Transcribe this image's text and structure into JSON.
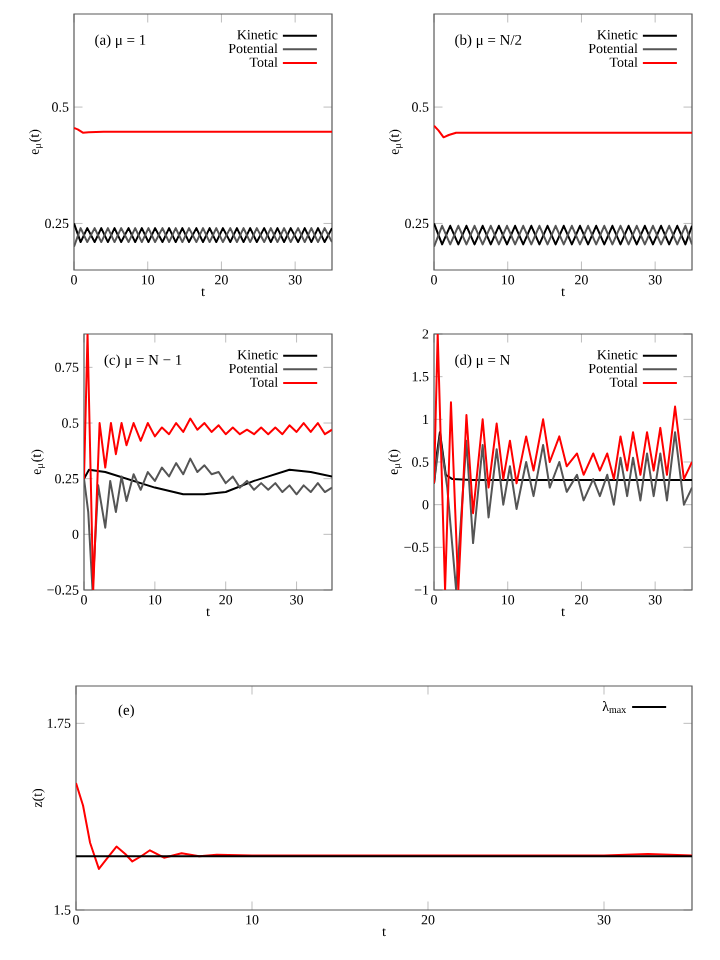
{
  "chart_data": [
    {
      "type": "line",
      "title": "(a) μ = 1",
      "xlabel": "t",
      "ylabel": "e$_{μ}$(t)",
      "xlim": [
        0,
        35
      ],
      "ylim": [
        0.15,
        0.7
      ],
      "xticks": [
        0,
        10,
        20,
        30
      ],
      "yticks": [
        0.25,
        0.5
      ],
      "legend": "top right",
      "series": [
        {
          "name": "Kinetic",
          "color": "#000000",
          "x": [
            0,
            0.9,
            1.8,
            2.8,
            3.7,
            4.6,
            5.5,
            6.4,
            7.4,
            8.3,
            9.2,
            10.1,
            11,
            12,
            12.9,
            13.8,
            14.7,
            15.6,
            16.6,
            17.5,
            18.4,
            19.3,
            20.2,
            21.2,
            22.1,
            23,
            23.9,
            24.8,
            25.8,
            26.7,
            27.6,
            28.5,
            29.4,
            30.4,
            31.3,
            32.2,
            33.1,
            34,
            35
          ],
          "values": [
            0.25,
            0.21,
            0.24,
            0.21,
            0.24,
            0.21,
            0.24,
            0.21,
            0.24,
            0.21,
            0.24,
            0.21,
            0.24,
            0.21,
            0.24,
            0.21,
            0.24,
            0.21,
            0.24,
            0.21,
            0.24,
            0.21,
            0.24,
            0.21,
            0.24,
            0.21,
            0.24,
            0.21,
            0.24,
            0.21,
            0.24,
            0.21,
            0.24,
            0.21,
            0.24,
            0.21,
            0.24,
            0.21,
            0.24
          ]
        },
        {
          "name": "Potential",
          "color": "#555555",
          "x": [
            0,
            0.9,
            1.8,
            2.8,
            3.7,
            4.6,
            5.5,
            6.4,
            7.4,
            8.3,
            9.2,
            10.1,
            11,
            12,
            12.9,
            13.8,
            14.7,
            15.6,
            16.6,
            17.5,
            18.4,
            19.3,
            20.2,
            21.2,
            22.1,
            23,
            23.9,
            24.8,
            25.8,
            26.7,
            27.6,
            28.5,
            29.4,
            30.4,
            31.3,
            32.2,
            33.1,
            34,
            35
          ],
          "values": [
            0.2,
            0.24,
            0.21,
            0.24,
            0.21,
            0.24,
            0.21,
            0.24,
            0.21,
            0.24,
            0.21,
            0.24,
            0.21,
            0.24,
            0.21,
            0.24,
            0.21,
            0.24,
            0.21,
            0.24,
            0.21,
            0.24,
            0.21,
            0.24,
            0.21,
            0.24,
            0.21,
            0.24,
            0.21,
            0.24,
            0.21,
            0.24,
            0.21,
            0.24,
            0.21,
            0.24,
            0.21,
            0.24,
            0.21
          ]
        },
        {
          "name": "Total",
          "color": "#ff0000",
          "x": [
            0,
            0.5,
            1.2,
            2,
            4,
            35
          ],
          "values": [
            0.455,
            0.452,
            0.445,
            0.446,
            0.447,
            0.447
          ]
        }
      ]
    },
    {
      "type": "line",
      "title": "(b) μ = N/2",
      "xlabel": "t",
      "ylabel": "e$_{μ}$(t)",
      "xlim": [
        0,
        35
      ],
      "ylim": [
        0.15,
        0.7
      ],
      "xticks": [
        0,
        10,
        20,
        30
      ],
      "yticks": [
        0.25,
        0.5
      ],
      "legend": "top right",
      "series": [
        {
          "name": "Kinetic",
          "color": "#000000",
          "x": [
            0,
            1.1,
            2.2,
            3.3,
            4.4,
            5.5,
            6.6,
            7.7,
            8.8,
            9.9,
            11,
            12.1,
            13.2,
            14.3,
            15.4,
            16.5,
            17.6,
            18.7,
            19.8,
            20.9,
            22,
            23.1,
            24.2,
            25.3,
            26.4,
            27.5,
            28.6,
            29.7,
            30.8,
            31.9,
            33,
            34.1,
            35
          ],
          "values": [
            0.25,
            0.205,
            0.245,
            0.205,
            0.245,
            0.205,
            0.245,
            0.205,
            0.245,
            0.205,
            0.245,
            0.205,
            0.245,
            0.205,
            0.245,
            0.205,
            0.245,
            0.205,
            0.245,
            0.205,
            0.245,
            0.205,
            0.245,
            0.205,
            0.245,
            0.205,
            0.245,
            0.205,
            0.245,
            0.205,
            0.245,
            0.205,
            0.245
          ]
        },
        {
          "name": "Potential",
          "color": "#555555",
          "x": [
            0,
            1.1,
            2.2,
            3.3,
            4.4,
            5.5,
            6.6,
            7.7,
            8.8,
            9.9,
            11,
            12.1,
            13.2,
            14.3,
            15.4,
            16.5,
            17.6,
            18.7,
            19.8,
            20.9,
            22,
            23.1,
            24.2,
            25.3,
            26.4,
            27.5,
            28.6,
            29.7,
            30.8,
            31.9,
            33,
            34.1,
            35
          ],
          "values": [
            0.2,
            0.245,
            0.205,
            0.245,
            0.205,
            0.245,
            0.205,
            0.245,
            0.205,
            0.245,
            0.205,
            0.245,
            0.205,
            0.245,
            0.205,
            0.245,
            0.205,
            0.245,
            0.205,
            0.245,
            0.205,
            0.245,
            0.205,
            0.245,
            0.205,
            0.245,
            0.205,
            0.245,
            0.205,
            0.245,
            0.205,
            0.245,
            0.205
          ]
        },
        {
          "name": "Total",
          "color": "#ff0000",
          "x": [
            0,
            0.6,
            1.3,
            2,
            3,
            35
          ],
          "values": [
            0.46,
            0.45,
            0.435,
            0.44,
            0.445,
            0.445
          ]
        }
      ]
    },
    {
      "type": "line",
      "title": "(c) μ = N − 1",
      "xlabel": "t",
      "ylabel": "e$_{μ}$(t)",
      "xlim": [
        0,
        35
      ],
      "ylim": [
        -0.25,
        0.9
      ],
      "xticks": [
        0,
        10,
        20,
        30
      ],
      "yticks": [
        {
          "value": -0.25,
          "label": "−0.25"
        },
        0,
        0.25,
        0.5,
        0.75
      ],
      "legend": "top right",
      "series": [
        {
          "name": "Kinetic",
          "color": "#000000",
          "x": [
            0,
            0.7,
            3,
            6,
            10,
            14,
            17,
            20,
            24,
            29,
            32,
            35
          ],
          "values": [
            0.25,
            0.29,
            0.28,
            0.25,
            0.21,
            0.18,
            0.18,
            0.19,
            0.24,
            0.29,
            0.28,
            0.26
          ]
        },
        {
          "name": "Potential",
          "color": "#555555",
          "x": [
            0,
            0.6,
            1.2,
            2,
            3,
            3.7,
            4.5,
            5.3,
            6,
            7,
            8,
            9,
            10,
            11,
            12,
            13,
            14,
            15,
            16,
            17,
            18,
            19,
            20,
            21,
            22,
            23,
            24,
            25,
            26,
            27,
            28,
            29,
            30,
            31,
            32,
            33,
            34,
            35
          ],
          "values": [
            0.25,
            0.1,
            -0.25,
            0.22,
            0.03,
            0.24,
            0.1,
            0.26,
            0.15,
            0.27,
            0.2,
            0.28,
            0.24,
            0.3,
            0.26,
            0.32,
            0.27,
            0.34,
            0.28,
            0.31,
            0.27,
            0.28,
            0.23,
            0.26,
            0.21,
            0.24,
            0.2,
            0.23,
            0.2,
            0.23,
            0.19,
            0.22,
            0.18,
            0.22,
            0.19,
            0.23,
            0.19,
            0.21
          ]
        },
        {
          "name": "Total",
          "color": "#ff0000",
          "x": [
            0,
            0.5,
            1.3,
            2.2,
            3,
            3.8,
            4.5,
            5.3,
            6,
            7,
            8,
            9,
            10,
            11,
            12,
            13,
            14,
            15,
            16,
            17,
            18,
            19,
            20,
            21,
            22,
            23,
            24,
            25,
            26,
            27,
            28,
            29,
            30,
            31,
            32,
            33,
            34,
            35
          ],
          "values": [
            0.25,
            0.9,
            -0.25,
            0.5,
            0.3,
            0.5,
            0.36,
            0.5,
            0.4,
            0.5,
            0.42,
            0.5,
            0.44,
            0.48,
            0.45,
            0.5,
            0.46,
            0.52,
            0.47,
            0.5,
            0.46,
            0.49,
            0.45,
            0.48,
            0.45,
            0.47,
            0.45,
            0.48,
            0.45,
            0.48,
            0.45,
            0.49,
            0.46,
            0.5,
            0.46,
            0.5,
            0.45,
            0.47
          ]
        }
      ]
    },
    {
      "type": "line",
      "title": "(d) μ = N",
      "xlabel": "t",
      "ylabel": "e$_{μ}$(t)",
      "xlim": [
        0,
        35
      ],
      "ylim": [
        -1,
        2
      ],
      "xticks": [
        0,
        10,
        20,
        30
      ],
      "yticks": [
        {
          "value": -1,
          "label": "−1"
        },
        {
          "value": -0.5,
          "label": "−0.5"
        },
        0,
        0.5,
        1,
        1.5,
        2
      ],
      "legend": "top right",
      "series": [
        {
          "name": "Kinetic",
          "color": "#000000",
          "x": [
            0,
            0.4,
            0.8,
            1.2,
            1.6,
            2.5,
            5,
            35
          ],
          "values": [
            0.25,
            0.6,
            0.85,
            0.6,
            0.35,
            0.3,
            0.29,
            0.29
          ]
        },
        {
          "name": "Potential",
          "color": "#555555",
          "x": [
            0,
            0.8,
            1.8,
            3,
            4.4,
            5.3,
            6.6,
            7.4,
            8.5,
            9.4,
            10.3,
            11.2,
            12.5,
            13.5,
            14.8,
            15.7,
            17,
            18,
            19.4,
            20.3,
            21.6,
            22.5,
            23.5,
            24.4,
            25.3,
            26.2,
            27,
            28,
            28.9,
            29.8,
            30.7,
            31.6,
            32.7,
            33.9,
            35
          ],
          "values": [
            0.25,
            0.8,
            0.2,
            -1,
            0.75,
            -0.45,
            0.7,
            -0.15,
            0.65,
            0,
            0.45,
            -0.05,
            0.5,
            0.1,
            0.7,
            0.2,
            0.5,
            0.15,
            0.35,
            0.05,
            0.3,
            0.1,
            0.35,
            0,
            0.55,
            0.1,
            0.55,
            0.05,
            0.6,
            0.1,
            0.6,
            0.05,
            0.85,
            0,
            0.2
          ]
        },
        {
          "name": "Total",
          "color": "#ff0000",
          "x": [
            0,
            0.5,
            1.5,
            2.3,
            3.3,
            4.4,
            5.3,
            6.6,
            7.4,
            8.5,
            9.4,
            10.3,
            11.2,
            12.5,
            13.5,
            14.8,
            15.7,
            17,
            18,
            19.4,
            20.3,
            21.6,
            22.5,
            23.5,
            24.4,
            25.3,
            26.2,
            27,
            28,
            28.9,
            29.8,
            30.7,
            31.6,
            32.7,
            33.9,
            35
          ],
          "values": [
            0.25,
            2,
            -1,
            1.2,
            -1,
            1.05,
            -0.1,
            1,
            0.2,
            0.95,
            0.3,
            0.75,
            0.25,
            0.8,
            0.4,
            1,
            0.5,
            0.8,
            0.45,
            0.6,
            0.35,
            0.6,
            0.4,
            0.6,
            0.3,
            0.8,
            0.4,
            0.85,
            0.35,
            0.85,
            0.4,
            0.9,
            0.35,
            1.15,
            0.3,
            0.5
          ]
        }
      ]
    },
    {
      "type": "line",
      "title": "(e)",
      "xlabel": "t",
      "ylabel": "z(t)",
      "xlim": [
        0,
        35
      ],
      "ylim": [
        1.5,
        1.8
      ],
      "xticks": [
        0,
        10,
        20,
        30
      ],
      "yticks": [
        1.5,
        1.75
      ],
      "legend": "top right",
      "series": [
        {
          "color": "#ff0000",
          "x": [
            0,
            0.4,
            0.8,
            1.3,
            1.8,
            2.3,
            2.8,
            3.2,
            3.7,
            4.2,
            4.6,
            5,
            5.5,
            6,
            7,
            8,
            10,
            15,
            20,
            25,
            30,
            32.5,
            35
          ],
          "values": [
            1.67,
            1.64,
            1.59,
            1.555,
            1.57,
            1.585,
            1.575,
            1.565,
            1.572,
            1.58,
            1.575,
            1.57,
            1.573,
            1.576,
            1.572,
            1.574,
            1.573,
            1.573,
            1.573,
            1.573,
            1.573,
            1.575,
            1.573
          ]
        },
        {
          "name": "λ$_{max}$",
          "color": "#000000",
          "x": [
            0,
            35
          ],
          "values": [
            1.572,
            1.572
          ]
        }
      ]
    }
  ]
}
